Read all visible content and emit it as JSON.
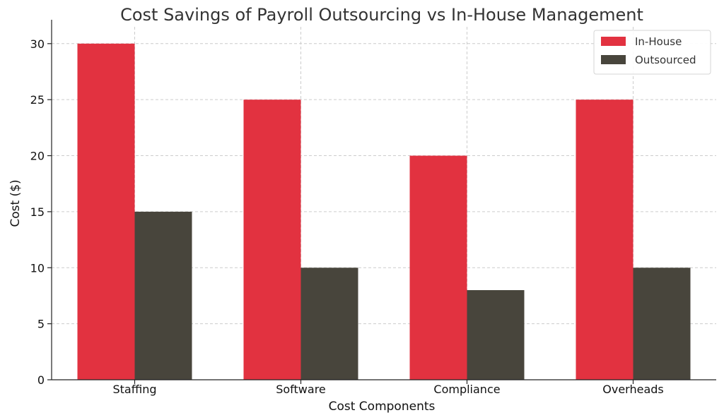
{
  "chart_data": {
    "type": "bar",
    "title": "Cost Savings of Payroll Outsourcing vs In-House Management",
    "xlabel": "Cost Components",
    "ylabel": "Cost ($)",
    "categories": [
      "Staffing",
      "Software",
      "Compliance",
      "Overheads"
    ],
    "series": [
      {
        "name": "In-House",
        "values": [
          30,
          25,
          20,
          25
        ],
        "color": "#e23240"
      },
      {
        "name": "Outsourced",
        "values": [
          15,
          10,
          8,
          10
        ],
        "color": "#48453c"
      }
    ],
    "ylim": [
      0,
      31.5
    ],
    "yticks": [
      0,
      5,
      10,
      15,
      20,
      25,
      30
    ],
    "grid": true,
    "legend": "top-right"
  }
}
